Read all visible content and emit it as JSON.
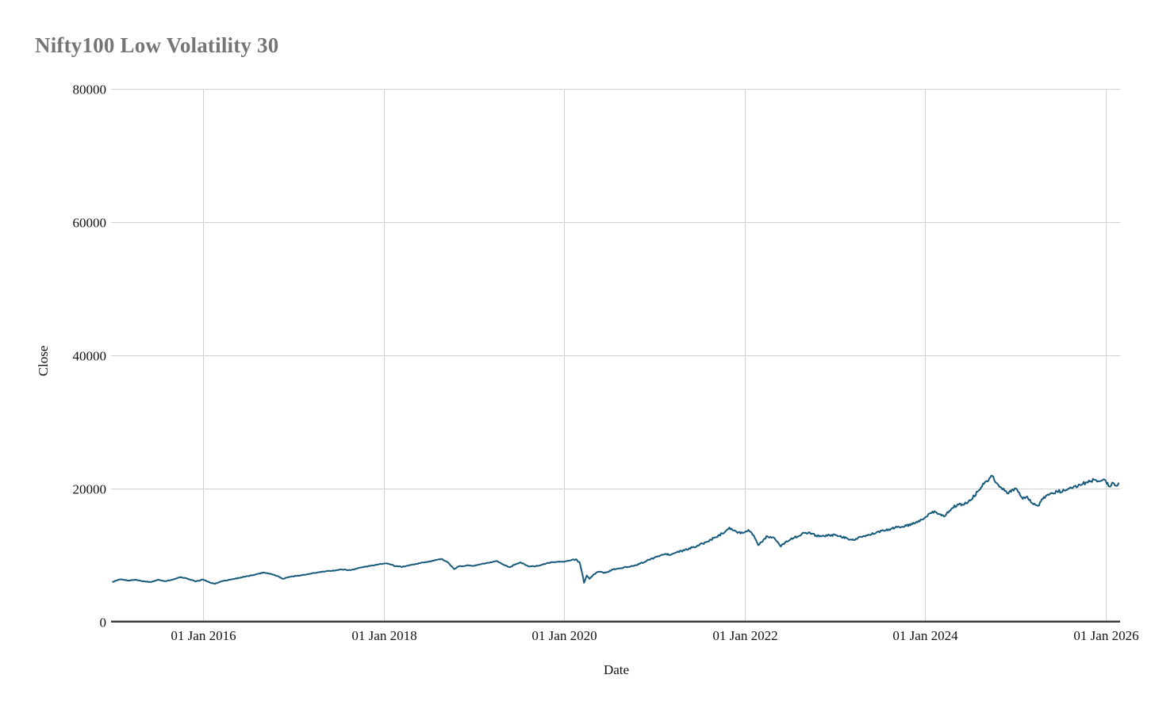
{
  "page": {
    "title": "Nifty100 Low Volatility 30"
  },
  "chart_data": {
    "type": "line",
    "title": "Nifty100 Low Volatility 30",
    "xlabel": "Date",
    "ylabel": "Close",
    "legend": "none",
    "grid": true,
    "x_range": [
      2014.985,
      2026.158
    ],
    "ylim": [
      0,
      80000
    ],
    "x_ticks": [
      {
        "label": "01 Jan 2016",
        "year": 2016
      },
      {
        "label": "01 Jan 2018",
        "year": 2018
      },
      {
        "label": "01 Jan 2020",
        "year": 2020
      },
      {
        "label": "01 Jan 2022",
        "year": 2022
      },
      {
        "label": "01 Jan 2024",
        "year": 2024
      },
      {
        "label": "01 Jan 2026",
        "year": 2026
      }
    ],
    "y_ticks": [
      {
        "label": "0",
        "value": 0
      },
      {
        "label": "20000",
        "value": 20000
      },
      {
        "label": "40000",
        "value": 40000
      },
      {
        "label": "60000",
        "value": 60000
      },
      {
        "label": "80000",
        "value": 80000
      }
    ],
    "colors": {
      "line": "#175a7c",
      "grid": "#d2d2d2",
      "axis": "#3d3d3d",
      "title": "#757575",
      "tick_text": "#111111",
      "background": "#ffffff"
    },
    "series": [
      {
        "name": "Close",
        "points": [
          [
            2015.0,
            5950
          ],
          [
            2015.08,
            6300
          ],
          [
            2015.17,
            6150
          ],
          [
            2015.25,
            6250
          ],
          [
            2015.33,
            6050
          ],
          [
            2015.42,
            5900
          ],
          [
            2015.5,
            6250
          ],
          [
            2015.58,
            6050
          ],
          [
            2015.67,
            6300
          ],
          [
            2015.75,
            6650
          ],
          [
            2015.83,
            6400
          ],
          [
            2015.92,
            6000
          ],
          [
            2016.0,
            6300
          ],
          [
            2016.08,
            5800
          ],
          [
            2016.13,
            5650
          ],
          [
            2016.21,
            6050
          ],
          [
            2016.33,
            6350
          ],
          [
            2016.42,
            6600
          ],
          [
            2016.5,
            6800
          ],
          [
            2016.58,
            7050
          ],
          [
            2016.67,
            7350
          ],
          [
            2016.75,
            7150
          ],
          [
            2016.83,
            6800
          ],
          [
            2016.88,
            6400
          ],
          [
            2016.96,
            6700
          ],
          [
            2017.04,
            6850
          ],
          [
            2017.17,
            7100
          ],
          [
            2017.29,
            7400
          ],
          [
            2017.42,
            7600
          ],
          [
            2017.54,
            7800
          ],
          [
            2017.63,
            7700
          ],
          [
            2017.75,
            8100
          ],
          [
            2017.88,
            8400
          ],
          [
            2017.96,
            8650
          ],
          [
            2018.04,
            8700
          ],
          [
            2018.13,
            8300
          ],
          [
            2018.21,
            8200
          ],
          [
            2018.33,
            8550
          ],
          [
            2018.46,
            8900
          ],
          [
            2018.58,
            9200
          ],
          [
            2018.65,
            9350
          ],
          [
            2018.71,
            8900
          ],
          [
            2018.78,
            7850
          ],
          [
            2018.83,
            8250
          ],
          [
            2018.92,
            8400
          ],
          [
            2019.0,
            8350
          ],
          [
            2019.08,
            8600
          ],
          [
            2019.17,
            8800
          ],
          [
            2019.26,
            9050
          ],
          [
            2019.33,
            8500
          ],
          [
            2019.4,
            8150
          ],
          [
            2019.46,
            8600
          ],
          [
            2019.52,
            8850
          ],
          [
            2019.6,
            8300
          ],
          [
            2019.67,
            8250
          ],
          [
            2019.75,
            8500
          ],
          [
            2019.83,
            8800
          ],
          [
            2019.92,
            8950
          ],
          [
            2020.0,
            8950
          ],
          [
            2020.08,
            9200
          ],
          [
            2020.13,
            9350
          ],
          [
            2020.17,
            8900
          ],
          [
            2020.2,
            7200
          ],
          [
            2020.22,
            5800
          ],
          [
            2020.25,
            6900
          ],
          [
            2020.28,
            6400
          ],
          [
            2020.33,
            7100
          ],
          [
            2020.38,
            7450
          ],
          [
            2020.46,
            7300
          ],
          [
            2020.54,
            7800
          ],
          [
            2020.63,
            8000
          ],
          [
            2020.71,
            8200
          ],
          [
            2020.79,
            8450
          ],
          [
            2020.88,
            8850
          ],
          [
            2020.96,
            9400
          ],
          [
            2021.04,
            9800
          ],
          [
            2021.13,
            10150
          ],
          [
            2021.17,
            9950
          ],
          [
            2021.25,
            10400
          ],
          [
            2021.33,
            10650
          ],
          [
            2021.42,
            11100
          ],
          [
            2021.5,
            11500
          ],
          [
            2021.58,
            11950
          ],
          [
            2021.67,
            12600
          ],
          [
            2021.75,
            13200
          ],
          [
            2021.83,
            14100
          ],
          [
            2021.92,
            13300
          ],
          [
            2022.0,
            13400
          ],
          [
            2022.04,
            13750
          ],
          [
            2022.1,
            12900
          ],
          [
            2022.15,
            11450
          ],
          [
            2022.21,
            12300
          ],
          [
            2022.25,
            12800
          ],
          [
            2022.33,
            12500
          ],
          [
            2022.4,
            11250
          ],
          [
            2022.46,
            12050
          ],
          [
            2022.54,
            12500
          ],
          [
            2022.63,
            13100
          ],
          [
            2022.71,
            13400
          ],
          [
            2022.79,
            12900
          ],
          [
            2022.88,
            12800
          ],
          [
            2022.96,
            13000
          ],
          [
            2023.04,
            12800
          ],
          [
            2023.13,
            12500
          ],
          [
            2023.21,
            12200
          ],
          [
            2023.29,
            12700
          ],
          [
            2023.38,
            13000
          ],
          [
            2023.46,
            13400
          ],
          [
            2023.54,
            13600
          ],
          [
            2023.63,
            13950
          ],
          [
            2023.71,
            14200
          ],
          [
            2023.79,
            14350
          ],
          [
            2023.88,
            14700
          ],
          [
            2023.96,
            15300
          ],
          [
            2024.0,
            15650
          ],
          [
            2024.08,
            16500
          ],
          [
            2024.17,
            16100
          ],
          [
            2024.21,
            15750
          ],
          [
            2024.29,
            16950
          ],
          [
            2024.38,
            17700
          ],
          [
            2024.42,
            17500
          ],
          [
            2024.5,
            18150
          ],
          [
            2024.58,
            19500
          ],
          [
            2024.63,
            20300
          ],
          [
            2024.67,
            21000
          ],
          [
            2024.71,
            21500
          ],
          [
            2024.74,
            21900
          ],
          [
            2024.79,
            20800
          ],
          [
            2024.83,
            20200
          ],
          [
            2024.88,
            19600
          ],
          [
            2024.92,
            19200
          ],
          [
            2024.96,
            19800
          ],
          [
            2025.0,
            19950
          ],
          [
            2025.04,
            19350
          ],
          [
            2025.08,
            18400
          ],
          [
            2025.13,
            18750
          ],
          [
            2025.17,
            17900
          ],
          [
            2025.21,
            17700
          ],
          [
            2025.25,
            17350
          ],
          [
            2025.29,
            18350
          ],
          [
            2025.38,
            19150
          ],
          [
            2025.46,
            19500
          ],
          [
            2025.54,
            19650
          ],
          [
            2025.63,
            20000
          ],
          [
            2025.71,
            20550
          ],
          [
            2025.79,
            20900
          ],
          [
            2025.88,
            21250
          ],
          [
            2025.96,
            21200
          ],
          [
            2026.0,
            21100
          ],
          [
            2026.04,
            20250
          ],
          [
            2026.08,
            20800
          ],
          [
            2026.11,
            20400
          ],
          [
            2026.14,
            20750
          ]
        ]
      }
    ]
  }
}
